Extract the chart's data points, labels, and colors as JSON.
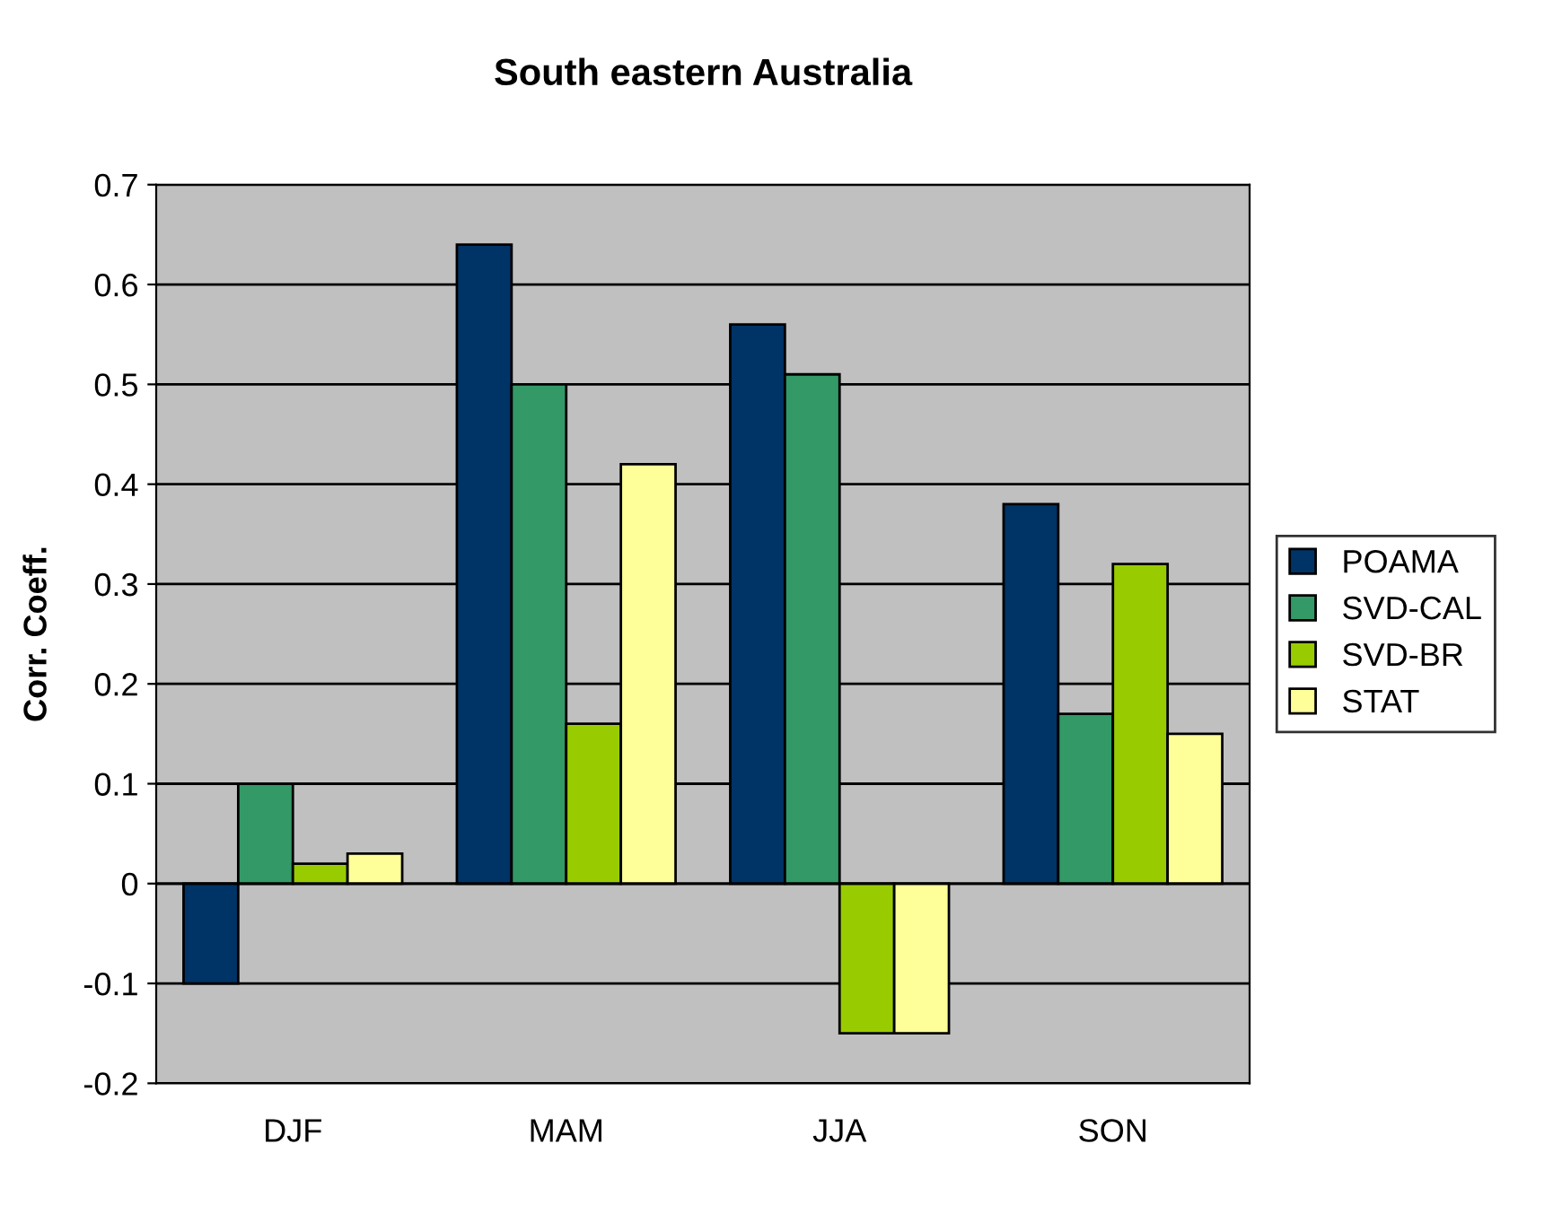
{
  "chart_data": {
    "type": "bar",
    "title": "South eastern Australia",
    "ylabel": "Corr. Coeff.",
    "categories": [
      "DJF",
      "MAM",
      "JJA",
      "SON"
    ],
    "series": [
      {
        "name": "POAMA",
        "color": "#003366",
        "values": [
          -0.1,
          0.64,
          0.56,
          0.38
        ]
      },
      {
        "name": "SVD-CAL",
        "color": "#339966",
        "values": [
          0.1,
          0.5,
          0.51,
          0.17
        ]
      },
      {
        "name": "SVD-BR",
        "color": "#99cc00",
        "values": [
          0.02,
          0.16,
          -0.15,
          0.32
        ]
      },
      {
        "name": "STAT",
        "color": "#ffff99",
        "values": [
          0.03,
          0.42,
          -0.15,
          0.15
        ]
      }
    ],
    "ylim": [
      -0.2,
      0.7
    ],
    "yticks": [
      -0.2,
      -0.1,
      0,
      0.1,
      0.2,
      0.3,
      0.4,
      0.5,
      0.6,
      0.7
    ],
    "grid": "y",
    "legend": "right"
  }
}
